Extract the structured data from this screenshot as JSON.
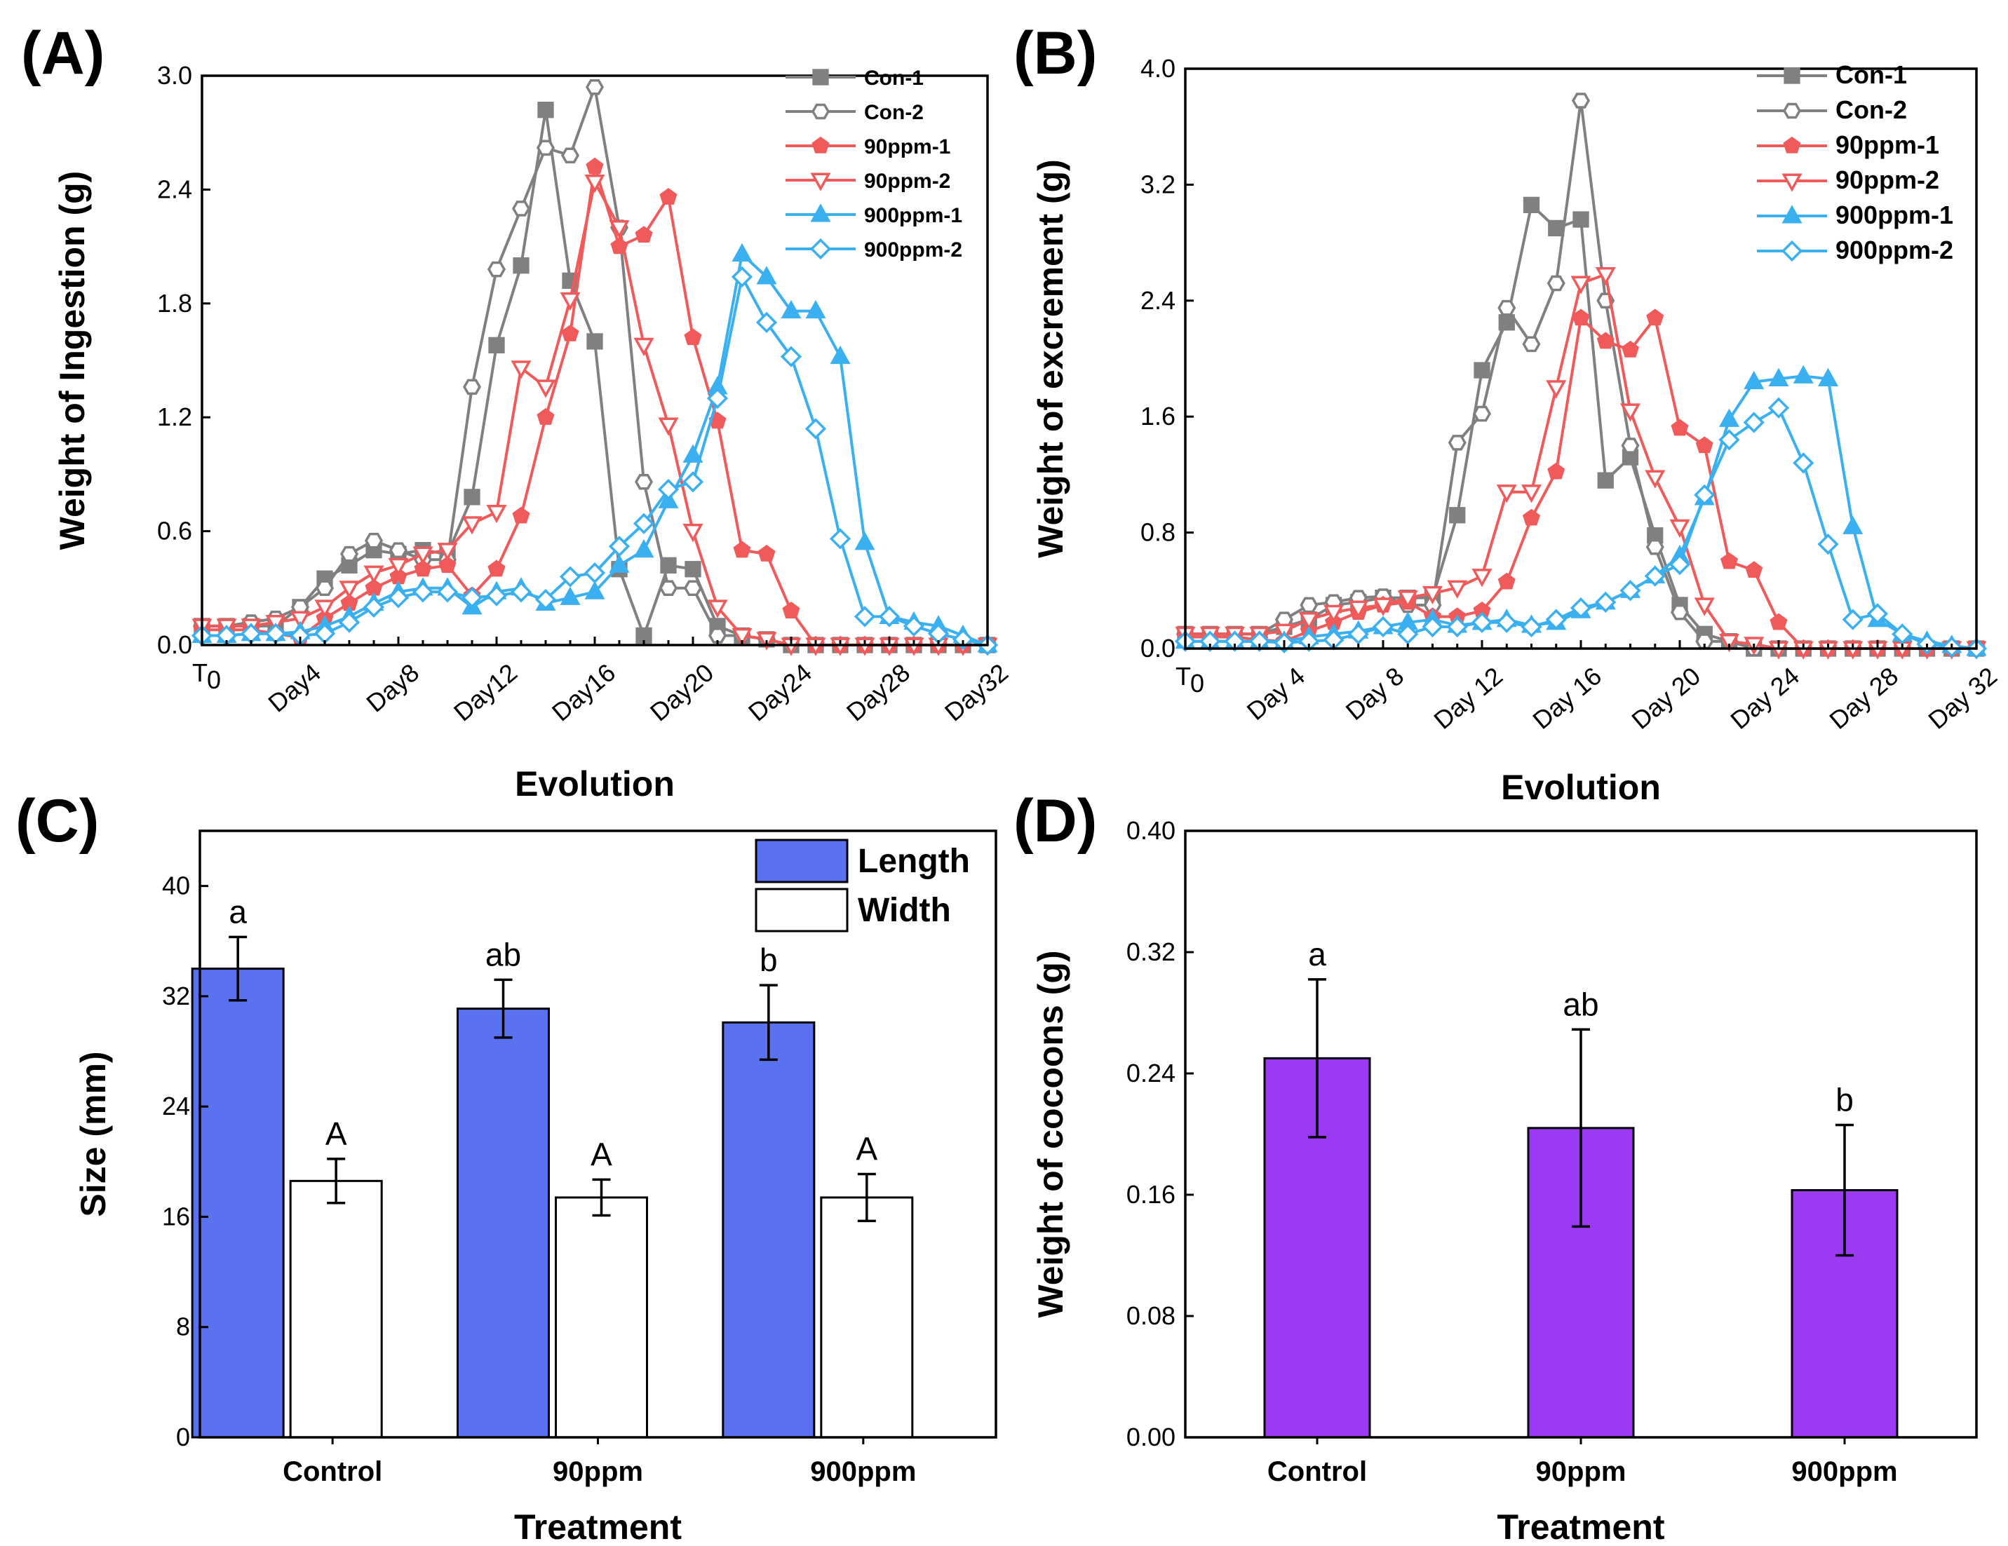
{
  "chart_data": [
    {
      "id": "A",
      "panel_label": "(A)",
      "type": "line",
      "xlabel": "Evolution",
      "ylabel": "Weight of Ingestion (g)",
      "ylim": [
        0,
        3.0
      ],
      "yticks": [
        "0.0",
        "0.6",
        "1.2",
        "1.8",
        "2.4",
        "3.0"
      ],
      "xlim": [
        0,
        32
      ],
      "x_tick_labels": [
        "T",
        "Day4",
        "Day8",
        "Day12",
        "Day16",
        "Day20",
        "Day24",
        "Day28",
        "Day32"
      ],
      "x_tick_subscript": "0",
      "legend": [
        "Con-1",
        "Con-2",
        "90ppm-1",
        "90ppm-2",
        "900ppm-1",
        "900ppm-2"
      ],
      "series": [
        {
          "name": "Con-1",
          "color": "#808080",
          "marker": "square",
          "filled": true,
          "values": [
            0.1,
            0.1,
            0.1,
            0.1,
            0.2,
            0.35,
            0.42,
            0.5,
            0.48,
            0.5,
            0.48,
            0.78,
            1.58,
            2.0,
            2.82,
            1.92,
            1.6,
            0.4,
            0.05,
            0.42,
            0.4,
            0.1,
            0.05,
            0.03,
            0.0,
            0.0,
            0.0,
            0.0,
            0.0,
            0.0,
            0.0,
            0.0,
            0.0
          ]
        },
        {
          "name": "Con-2",
          "color": "#808080",
          "marker": "hexagon",
          "filled": false,
          "values": [
            0.1,
            0.1,
            0.12,
            0.14,
            0.2,
            0.3,
            0.48,
            0.55,
            0.5,
            0.45,
            0.45,
            1.36,
            1.98,
            2.3,
            2.62,
            2.58,
            2.94,
            2.2,
            0.86,
            0.3,
            0.3,
            0.05,
            0.05,
            0.03,
            0.0,
            0.0,
            0.0,
            0.0,
            0.0,
            0.0,
            0.0,
            0.0,
            0.0
          ]
        },
        {
          "name": "90ppm-1",
          "color": "#f05a5a",
          "marker": "pentagon",
          "filled": true,
          "values": [
            0.08,
            0.08,
            0.08,
            0.06,
            0.04,
            0.14,
            0.22,
            0.3,
            0.36,
            0.4,
            0.42,
            0.26,
            0.4,
            0.68,
            1.2,
            1.64,
            2.52,
            2.1,
            2.16,
            2.36,
            1.62,
            1.18,
            0.5,
            0.48,
            0.18,
            0.0,
            0.0,
            0.0,
            0.0,
            0.0,
            0.0,
            0.0,
            0.0
          ]
        },
        {
          "name": "90ppm-2",
          "color": "#f05a5a",
          "marker": "triangle-down",
          "filled": false,
          "values": [
            0.1,
            0.1,
            0.1,
            0.12,
            0.14,
            0.2,
            0.3,
            0.38,
            0.42,
            0.48,
            0.5,
            0.64,
            0.7,
            1.46,
            1.36,
            1.82,
            2.44,
            2.2,
            1.58,
            1.16,
            0.6,
            0.2,
            0.05,
            0.03,
            0.0,
            0.0,
            0.0,
            0.0,
            0.0,
            0.0,
            0.0,
            0.0,
            0.0
          ]
        },
        {
          "name": "900ppm-1",
          "color": "#3ab0f0",
          "marker": "triangle-up",
          "filled": true,
          "values": [
            0.05,
            0.05,
            0.06,
            0.06,
            0.07,
            0.1,
            0.15,
            0.22,
            0.28,
            0.3,
            0.3,
            0.2,
            0.28,
            0.3,
            0.22,
            0.25,
            0.28,
            0.42,
            0.5,
            0.76,
            1.0,
            1.36,
            2.06,
            1.94,
            1.76,
            1.76,
            1.52,
            0.54,
            0.15,
            0.12,
            0.1,
            0.05,
            0.0
          ]
        },
        {
          "name": "900ppm-2",
          "color": "#3ab0f0",
          "marker": "diamond",
          "filled": false,
          "values": [
            0.05,
            0.05,
            0.06,
            0.06,
            0.05,
            0.06,
            0.12,
            0.2,
            0.25,
            0.28,
            0.28,
            0.25,
            0.26,
            0.28,
            0.24,
            0.36,
            0.38,
            0.52,
            0.64,
            0.82,
            0.86,
            1.3,
            1.94,
            1.7,
            1.52,
            1.14,
            0.56,
            0.15,
            0.15,
            0.1,
            0.06,
            0.03,
            0.0
          ]
        }
      ]
    },
    {
      "id": "B",
      "panel_label": "(B)",
      "type": "line",
      "xlabel": "Evolution",
      "ylabel": "Weight of excrement (g)",
      "ylim": [
        0,
        4.0
      ],
      "yticks": [
        "0.0",
        "0.8",
        "1.6",
        "2.4",
        "3.2",
        "4.0"
      ],
      "xlim": [
        0,
        32
      ],
      "x_tick_labels": [
        "T",
        "Day 4",
        "Day 8",
        "Day 12",
        "Day 16",
        "Day 20",
        "Day 24",
        "Day 28",
        "Day 32"
      ],
      "x_tick_subscript": "0",
      "legend": [
        "Con-1",
        "Con-2",
        "90ppm-1",
        "90ppm-2",
        "900ppm-1",
        "900ppm-2"
      ],
      "series": [
        {
          "name": "Con-1",
          "color": "#808080",
          "marker": "square",
          "filled": true,
          "values": [
            0.1,
            0.1,
            0.1,
            0.1,
            0.15,
            0.2,
            0.3,
            0.32,
            0.35,
            0.35,
            0.35,
            0.92,
            1.92,
            2.25,
            3.06,
            2.9,
            2.96,
            1.16,
            1.32,
            0.78,
            0.3,
            0.1,
            0.05,
            0.0,
            0.0,
            0.0,
            0.0,
            0.0,
            0.0,
            0.0,
            0.0,
            0.0,
            0.0
          ]
        },
        {
          "name": "Con-2",
          "color": "#808080",
          "marker": "hexagon",
          "filled": false,
          "values": [
            0.1,
            0.1,
            0.1,
            0.1,
            0.2,
            0.3,
            0.32,
            0.35,
            0.36,
            0.3,
            0.3,
            1.42,
            1.62,
            2.35,
            2.1,
            2.52,
            3.78,
            2.4,
            1.4,
            0.7,
            0.25,
            0.05,
            0.05,
            0.0,
            0.0,
            0.0,
            0.0,
            0.0,
            0.0,
            0.0,
            0.0,
            0.0,
            0.0
          ]
        },
        {
          "name": "90ppm-1",
          "color": "#f05a5a",
          "marker": "pentagon",
          "filled": true,
          "values": [
            0.08,
            0.08,
            0.08,
            0.06,
            0.05,
            0.12,
            0.18,
            0.25,
            0.3,
            0.32,
            0.22,
            0.22,
            0.26,
            0.46,
            0.9,
            1.22,
            2.28,
            2.12,
            2.06,
            2.28,
            1.52,
            1.4,
            0.6,
            0.54,
            0.18,
            0.0,
            0.0,
            0.0,
            0.0,
            0.0,
            0.0,
            0.0,
            0.0
          ]
        },
        {
          "name": "90ppm-2",
          "color": "#f05a5a",
          "marker": "triangle-down",
          "filled": false,
          "values": [
            0.1,
            0.1,
            0.1,
            0.1,
            0.12,
            0.2,
            0.25,
            0.28,
            0.3,
            0.35,
            0.38,
            0.42,
            0.5,
            1.08,
            1.08,
            1.8,
            2.52,
            2.58,
            1.64,
            1.18,
            0.84,
            0.3,
            0.05,
            0.03,
            0.0,
            0.0,
            0.0,
            0.0,
            0.0,
            0.0,
            0.0,
            0.0,
            0.0
          ]
        },
        {
          "name": "900ppm-1",
          "color": "#3ab0f0",
          "marker": "triangle-up",
          "filled": true,
          "values": [
            0.05,
            0.05,
            0.05,
            0.05,
            0.05,
            0.08,
            0.1,
            0.12,
            0.15,
            0.18,
            0.2,
            0.16,
            0.18,
            0.2,
            0.16,
            0.18,
            0.26,
            0.32,
            0.4,
            0.5,
            0.64,
            1.04,
            1.58,
            1.84,
            1.86,
            1.88,
            1.86,
            0.84,
            0.2,
            0.1,
            0.05,
            0.02,
            0.0
          ]
        },
        {
          "name": "900ppm-2",
          "color": "#3ab0f0",
          "marker": "diamond",
          "filled": false,
          "values": [
            0.05,
            0.05,
            0.05,
            0.05,
            0.04,
            0.05,
            0.06,
            0.1,
            0.15,
            0.1,
            0.15,
            0.15,
            0.18,
            0.18,
            0.15,
            0.2,
            0.28,
            0.32,
            0.4,
            0.5,
            0.58,
            1.06,
            1.44,
            1.56,
            1.66,
            1.28,
            0.72,
            0.2,
            0.24,
            0.1,
            0.03,
            0.01,
            0.0
          ]
        }
      ]
    },
    {
      "id": "C",
      "panel_label": "(C)",
      "type": "bar",
      "xlabel": "Treatment",
      "ylabel": "Size (mm)",
      "ylim": [
        0,
        44
      ],
      "yticks": [
        "0",
        "8",
        "16",
        "24",
        "32",
        "40"
      ],
      "categories": [
        "Control",
        "90ppm",
        "900ppm"
      ],
      "series": [
        {
          "name": "Length",
          "color": "#5b72f0",
          "values": [
            34.0,
            31.1,
            30.1
          ],
          "errors": [
            2.3,
            2.1,
            2.7
          ],
          "sig": [
            "a",
            "ab",
            "b"
          ]
        },
        {
          "name": "Width",
          "color": "#ffffff",
          "values": [
            18.6,
            17.4,
            17.4
          ],
          "errors": [
            1.6,
            1.3,
            1.7
          ],
          "sig": [
            "A",
            "A",
            "A"
          ]
        }
      ]
    },
    {
      "id": "D",
      "panel_label": "(D)",
      "type": "bar",
      "xlabel": "Treatment",
      "ylabel": "Weight of cocoons (g)",
      "ylim": [
        0,
        0.4
      ],
      "yticks": [
        "0.00",
        "0.08",
        "0.16",
        "0.24",
        "0.32",
        "0.40"
      ],
      "categories": [
        "Control",
        "90ppm",
        "900ppm"
      ],
      "series": [
        {
          "name": "Weight",
          "color": "#9b3af2",
          "values": [
            0.25,
            0.204,
            0.163
          ],
          "errors": [
            0.052,
            0.065,
            0.043
          ],
          "sig": [
            "a",
            "ab",
            "b"
          ]
        }
      ]
    }
  ]
}
